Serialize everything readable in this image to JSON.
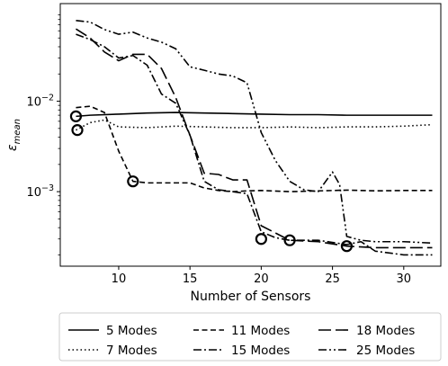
{
  "chart_data": {
    "type": "line",
    "xlabel": "Number of Sensors",
    "ylabel": "ε_mean",
    "ylabel_parts": {
      "base": "ε",
      "sub": "mean"
    },
    "xlim": [
      5.9,
      32.6
    ],
    "ylim": [
      0.00015,
      0.12
    ],
    "yscale": "log",
    "xticks": [
      10,
      15,
      20,
      25,
      30
    ],
    "xtick_labels": [
      "10",
      "15",
      "20",
      "25",
      "30"
    ],
    "yticks": [
      0.001,
      0.01
    ],
    "ytick_labels": {
      "0.001": {
        "base": "10",
        "exp": "−3"
      },
      "0.01": {
        "base": "10",
        "exp": "−2"
      }
    },
    "grid": false,
    "legend_position": "below",
    "series": [
      {
        "name": "5 Modes",
        "dash": "solid",
        "x": [
          7,
          8,
          10,
          12,
          14,
          16,
          18,
          20,
          22,
          24,
          26,
          28,
          30,
          32
        ],
        "y": [
          0.0068,
          0.007,
          0.0072,
          0.0074,
          0.0075,
          0.0074,
          0.0073,
          0.0072,
          0.0071,
          0.0071,
          0.007,
          0.007,
          0.007,
          0.007
        ]
      },
      {
        "name": "7 Modes",
        "dash": "dotted",
        "x": [
          7,
          8,
          9,
          10,
          12,
          14,
          16,
          18,
          20,
          22,
          24,
          26,
          28,
          30,
          32
        ],
        "y": [
          0.0048,
          0.0058,
          0.0062,
          0.0052,
          0.0051,
          0.0053,
          0.0052,
          0.0051,
          0.0051,
          0.0052,
          0.0051,
          0.0052,
          0.0052,
          0.0053,
          0.0055
        ]
      },
      {
        "name": "11 Modes",
        "dash": "dashed",
        "x": [
          7,
          8,
          9,
          10,
          11,
          12,
          14,
          15,
          16,
          17,
          18,
          19,
          20,
          22,
          24,
          26,
          28,
          30,
          32
        ],
        "y": [
          0.0085,
          0.0088,
          0.0075,
          0.0028,
          0.0013,
          0.00125,
          0.00125,
          0.00125,
          0.0011,
          0.00103,
          0.001,
          0.00102,
          0.00103,
          0.001,
          0.00102,
          0.00104,
          0.00102,
          0.00103,
          0.00103
        ]
      },
      {
        "name": "15 Modes",
        "dash": "dashdot",
        "x": [
          7,
          8,
          9,
          10,
          11,
          12,
          13,
          14,
          15,
          16,
          17,
          18,
          19,
          20,
          21,
          22,
          24,
          26,
          27,
          28,
          30,
          32
        ],
        "y": [
          0.055,
          0.048,
          0.04,
          0.03,
          0.032,
          0.025,
          0.012,
          0.0095,
          0.0042,
          0.0013,
          0.00105,
          0.001,
          0.00095,
          0.00036,
          0.00031,
          0.00029,
          0.00029,
          0.00026,
          0.00028,
          0.00022,
          0.0002,
          0.0002
        ]
      },
      {
        "name": "18 Modes",
        "dash": "longdash",
        "x": [
          7,
          8,
          9,
          10,
          11,
          12,
          13,
          14,
          15,
          16,
          17,
          18,
          19,
          20,
          22,
          24,
          26,
          28,
          30,
          32
        ],
        "y": [
          0.063,
          0.05,
          0.035,
          0.028,
          0.033,
          0.033,
          0.023,
          0.011,
          0.0042,
          0.0016,
          0.00155,
          0.00135,
          0.00135,
          0.00042,
          0.00029,
          0.00028,
          0.00025,
          0.00024,
          0.00024,
          0.00024
        ]
      },
      {
        "name": "25 Modes",
        "dash": "dashdotdot",
        "x": [
          7,
          8,
          9,
          10,
          11,
          12,
          13,
          14,
          15,
          16,
          17,
          18,
          19,
          20,
          21,
          22,
          23,
          24,
          25,
          25.5,
          26,
          27,
          28,
          30,
          32
        ],
        "y": [
          0.078,
          0.075,
          0.062,
          0.055,
          0.058,
          0.05,
          0.045,
          0.038,
          0.024,
          0.022,
          0.02,
          0.019,
          0.016,
          0.0045,
          0.0022,
          0.0013,
          0.00105,
          0.001,
          0.00165,
          0.0012,
          0.00032,
          0.00029,
          0.00028,
          0.00028,
          0.00027
        ]
      }
    ],
    "markers": [
      {
        "x": 7,
        "y": 0.0068
      },
      {
        "x": 7.1,
        "y": 0.0048
      },
      {
        "x": 11,
        "y": 0.0013
      },
      {
        "x": 20,
        "y": 0.0003
      },
      {
        "x": 22,
        "y": 0.00029
      },
      {
        "x": 26,
        "y": 0.00025
      }
    ]
  }
}
